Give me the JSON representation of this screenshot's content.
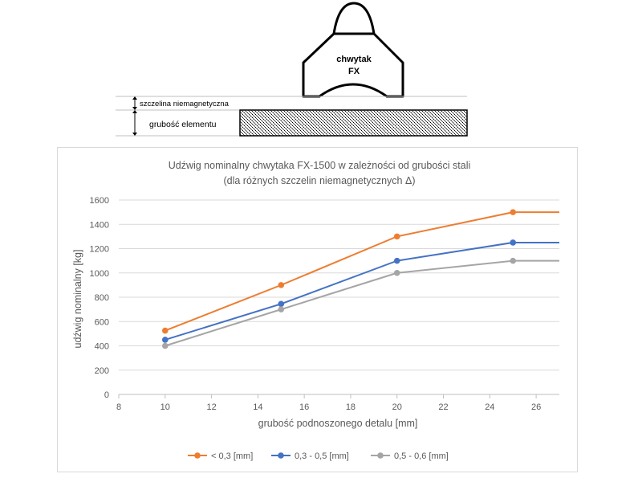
{
  "diagram": {
    "gripper_label_line1": "chwytak",
    "gripper_label_line2": "FX",
    "gap_label": "szczelina niemagnetyczna",
    "thickness_label": "grubość elementu"
  },
  "chart_data": {
    "type": "line",
    "title": "Udźwig nominalny chwytaka FX-1500 w zależności od grubości stali",
    "subtitle": "(dla różnych szczelin niemagnetycznych Δ)",
    "xlabel": "grubość podnoszonego detalu [mm]",
    "ylabel": "udźwig nominalny [kg]",
    "xlim": [
      8,
      27
    ],
    "ylim": [
      0,
      1600
    ],
    "xticks": [
      8,
      10,
      12,
      14,
      16,
      18,
      20,
      22,
      24,
      26
    ],
    "yticks": [
      0,
      200,
      400,
      600,
      800,
      1000,
      1200,
      1400,
      1600
    ],
    "grid": "horizontal",
    "legend_position": "bottom",
    "series": [
      {
        "name": "< 0,3 [mm]",
        "color": "#ED7D31",
        "x": [
          10,
          15,
          20,
          25
        ],
        "y": [
          525,
          900,
          1300,
          1500
        ],
        "extend_to_x": 27
      },
      {
        "name": "0,3 - 0,5 [mm]",
        "color": "#4472C4",
        "x": [
          10,
          15,
          20,
          25
        ],
        "y": [
          450,
          745,
          1100,
          1250
        ],
        "extend_to_x": 27
      },
      {
        "name": "0,5 - 0,6 [mm]",
        "color": "#A5A5A5",
        "x": [
          10,
          15,
          20,
          25
        ],
        "y": [
          400,
          700,
          1000,
          1100
        ],
        "extend_to_x": 27
      }
    ]
  }
}
